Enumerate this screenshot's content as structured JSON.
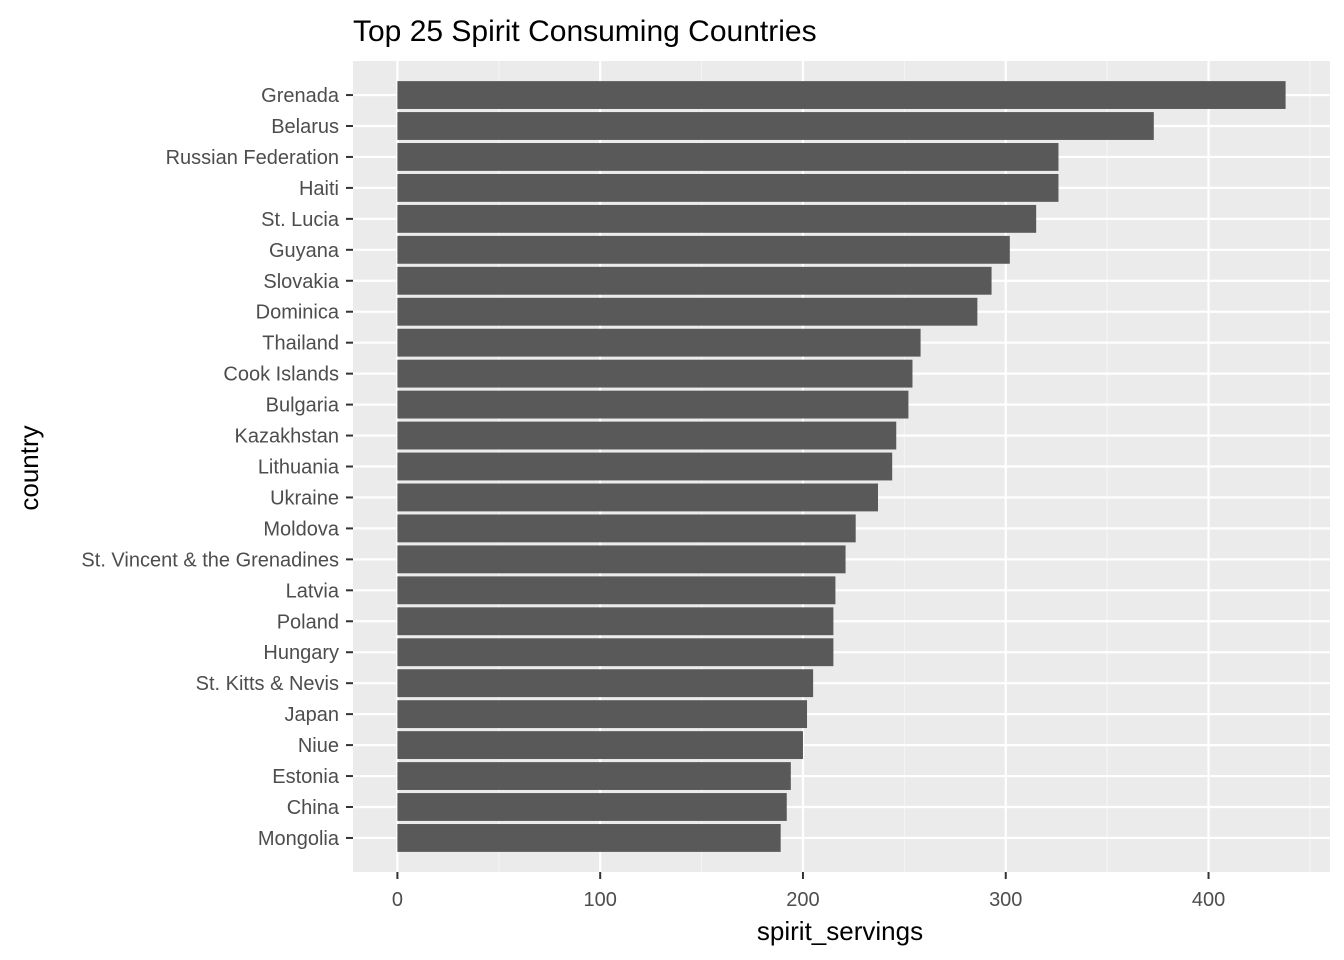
{
  "chart_data": {
    "type": "bar",
    "orientation": "horizontal",
    "title": "Top 25 Spirit Consuming Countries",
    "xlabel": "spirit_servings",
    "ylabel": "country",
    "xlim": [
      -21.9,
      459.9
    ],
    "x_ticks": [
      0,
      100,
      200,
      300,
      400
    ],
    "grid": true,
    "legend": "none",
    "colors": {
      "panel_background": "#ebebeb",
      "grid_major": "#ffffff",
      "grid_minor": "#f5f5f5",
      "bar_fill": "#595959",
      "tick_label": "#4d4d4d",
      "tick_mark": "#333333",
      "title": "#000000"
    },
    "categories": [
      "Grenada",
      "Belarus",
      "Russian Federation",
      "Haiti",
      "St. Lucia",
      "Guyana",
      "Slovakia",
      "Dominica",
      "Thailand",
      "Cook Islands",
      "Bulgaria",
      "Kazakhstan",
      "Lithuania",
      "Ukraine",
      "Moldova",
      "St. Vincent & the Grenadines",
      "Latvia",
      "Poland",
      "Hungary",
      "St. Kitts & Nevis",
      "Japan",
      "Niue",
      "Estonia",
      "China",
      "Mongolia"
    ],
    "values": [
      438,
      373,
      326,
      326,
      315,
      302,
      293,
      286,
      258,
      254,
      252,
      246,
      244,
      237,
      226,
      221,
      216,
      215,
      215,
      205,
      202,
      200,
      194,
      192,
      189
    ]
  }
}
